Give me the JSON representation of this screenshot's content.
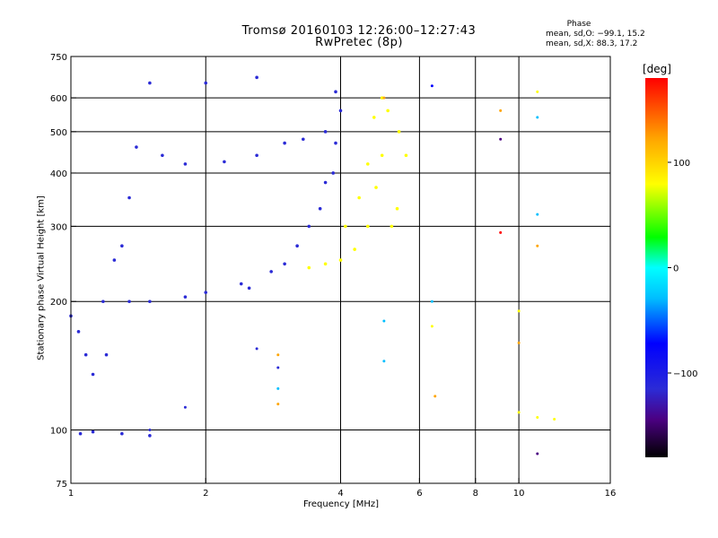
{
  "header": {
    "title": "Tromsø 20160103 12:26:00–12:27:43",
    "subtitle": "RwPretec (8p)"
  },
  "phase_box": {
    "title": "Phase",
    "o_line": "mean, sd,O: −99.1, 15.2",
    "x_line": "mean, sd,X:  88.3, 17.2"
  },
  "colorbar": {
    "unit": "[deg]",
    "ticks": [
      {
        "value": 100,
        "label": "100"
      },
      {
        "value": 0,
        "label": "0"
      },
      {
        "value": -100,
        "label": "−100"
      }
    ],
    "range": [
      -180,
      180
    ]
  },
  "chart_data": {
    "type": "scatter",
    "title": "Tromsø 20160103 12:26:00–12:27:43",
    "subtitle": "RwPretec (8p)",
    "xlabel": "Frequency [MHz]",
    "ylabel": "Stationary phase Virtual Height [km]",
    "x_scale": "log",
    "y_scale": "log",
    "xlim": [
      1,
      16
    ],
    "ylim": [
      75,
      750
    ],
    "x_ticks": [
      {
        "value": 1,
        "label": "1"
      },
      {
        "value": 2,
        "label": "2"
      },
      {
        "value": 4,
        "label": "4"
      },
      {
        "value": 6,
        "label": "6"
      },
      {
        "value": 8,
        "label": "8"
      },
      {
        "value": 10,
        "label": "10"
      },
      {
        "value": 16,
        "label": "16"
      }
    ],
    "y_ticks": [
      {
        "value": 75,
        "label": "75"
      },
      {
        "value": 100,
        "label": "100"
      },
      {
        "value": 200,
        "label": "200"
      },
      {
        "value": 300,
        "label": "300"
      },
      {
        "value": 400,
        "label": "400"
      },
      {
        "value": 500,
        "label": "500"
      },
      {
        "value": 600,
        "label": "600"
      },
      {
        "value": 750,
        "label": "750"
      }
    ],
    "x_grid": [
      1,
      2,
      4,
      6,
      8,
      10,
      16
    ],
    "y_grid": [
      100,
      200,
      300,
      400,
      500,
      600
    ],
    "color_by": "phase [deg]",
    "series": [
      {
        "name": "O-mode",
        "phase_mean": -99.1,
        "phase_sd": 15.2,
        "points": [
          [
            1.05,
            98
          ],
          [
            1.12,
            99
          ],
          [
            1.3,
            98
          ],
          [
            1.5,
            97
          ],
          [
            1.0,
            185
          ],
          [
            1.04,
            170
          ],
          [
            1.08,
            150
          ],
          [
            1.12,
            135
          ],
          [
            1.18,
            200
          ],
          [
            1.2,
            150
          ],
          [
            1.25,
            250
          ],
          [
            1.3,
            270
          ],
          [
            1.35,
            200
          ],
          [
            1.5,
            200
          ],
          [
            1.8,
            205
          ],
          [
            2.0,
            210
          ],
          [
            2.4,
            220
          ],
          [
            2.8,
            235
          ],
          [
            3.2,
            270
          ],
          [
            3.6,
            330
          ],
          [
            3.85,
            400
          ],
          [
            4.0,
            560
          ],
          [
            2.5,
            215
          ],
          [
            3.0,
            245
          ],
          [
            3.4,
            300
          ],
          [
            3.7,
            380
          ],
          [
            3.9,
            470
          ],
          [
            1.6,
            440
          ],
          [
            1.8,
            420
          ],
          [
            2.2,
            425
          ],
          [
            2.6,
            440
          ],
          [
            3.0,
            470
          ],
          [
            3.3,
            480
          ],
          [
            3.7,
            500
          ],
          [
            3.9,
            620
          ],
          [
            1.5,
            650
          ],
          [
            2.0,
            650
          ],
          [
            2.6,
            670
          ],
          [
            1.35,
            350
          ],
          [
            1.4,
            460
          ]
        ]
      },
      {
        "name": "X-mode",
        "phase_mean": 88.3,
        "phase_sd": 17.2,
        "points": [
          [
            3.4,
            240
          ],
          [
            3.7,
            245
          ],
          [
            4.0,
            250
          ],
          [
            4.3,
            265
          ],
          [
            4.6,
            300
          ],
          [
            4.8,
            370
          ],
          [
            4.95,
            440
          ],
          [
            4.1,
            300
          ],
          [
            4.4,
            350
          ],
          [
            4.6,
            420
          ],
          [
            4.75,
            540
          ],
          [
            4.95,
            600
          ],
          [
            5.1,
            560
          ],
          [
            5.4,
            500
          ],
          [
            5.6,
            440
          ],
          [
            5.2,
            300
          ],
          [
            5.35,
            330
          ]
        ]
      }
    ],
    "scattered_returns": [
      {
        "x": 5.0,
        "y": 600,
        "phase": 150
      },
      {
        "x": 5.0,
        "y": 145,
        "phase": -40
      },
      {
        "x": 5.0,
        "y": 180,
        "phase": -20
      },
      {
        "x": 6.4,
        "y": 640,
        "phase": -60
      },
      {
        "x": 6.4,
        "y": 200,
        "phase": -40
      },
      {
        "x": 6.4,
        "y": 175,
        "phase": 100
      },
      {
        "x": 6.5,
        "y": 120,
        "phase": 130
      },
      {
        "x": 9.1,
        "y": 560,
        "phase": 150
      },
      {
        "x": 9.1,
        "y": 480,
        "phase": -150
      },
      {
        "x": 9.1,
        "y": 290,
        "phase": 160
      },
      {
        "x": 10.0,
        "y": 190,
        "phase": 110
      },
      {
        "x": 10.0,
        "y": 160,
        "phase": 140
      },
      {
        "x": 10.0,
        "y": 110,
        "phase": 90
      },
      {
        "x": 11.0,
        "y": 620,
        "phase": 90
      },
      {
        "x": 11.0,
        "y": 540,
        "phase": -30
      },
      {
        "x": 11.0,
        "y": 320,
        "phase": -40
      },
      {
        "x": 11.0,
        "y": 270,
        "phase": 130
      },
      {
        "x": 11.0,
        "y": 107,
        "phase": 110
      },
      {
        "x": 11.0,
        "y": 88,
        "phase": -140
      },
      {
        "x": 12.0,
        "y": 106,
        "phase": 110
      },
      {
        "x": 2.6,
        "y": 155,
        "phase": -100
      },
      {
        "x": 2.9,
        "y": 150,
        "phase": 140
      },
      {
        "x": 2.9,
        "y": 140,
        "phase": -110
      },
      {
        "x": 2.9,
        "y": 125,
        "phase": -40
      },
      {
        "x": 2.9,
        "y": 115,
        "phase": 120
      },
      {
        "x": 1.8,
        "y": 113,
        "phase": -100
      },
      {
        "x": 1.5,
        "y": 100,
        "phase": -110
      }
    ]
  },
  "style": {
    "background": "#ffffff",
    "axis_color": "#000000",
    "colormap": [
      "#000000",
      "#4b0082",
      "#2b2bd6",
      "#0000ff",
      "#00bfff",
      "#00ffff",
      "#00ff00",
      "#ffff00",
      "#ffa500",
      "#ff0000"
    ]
  }
}
